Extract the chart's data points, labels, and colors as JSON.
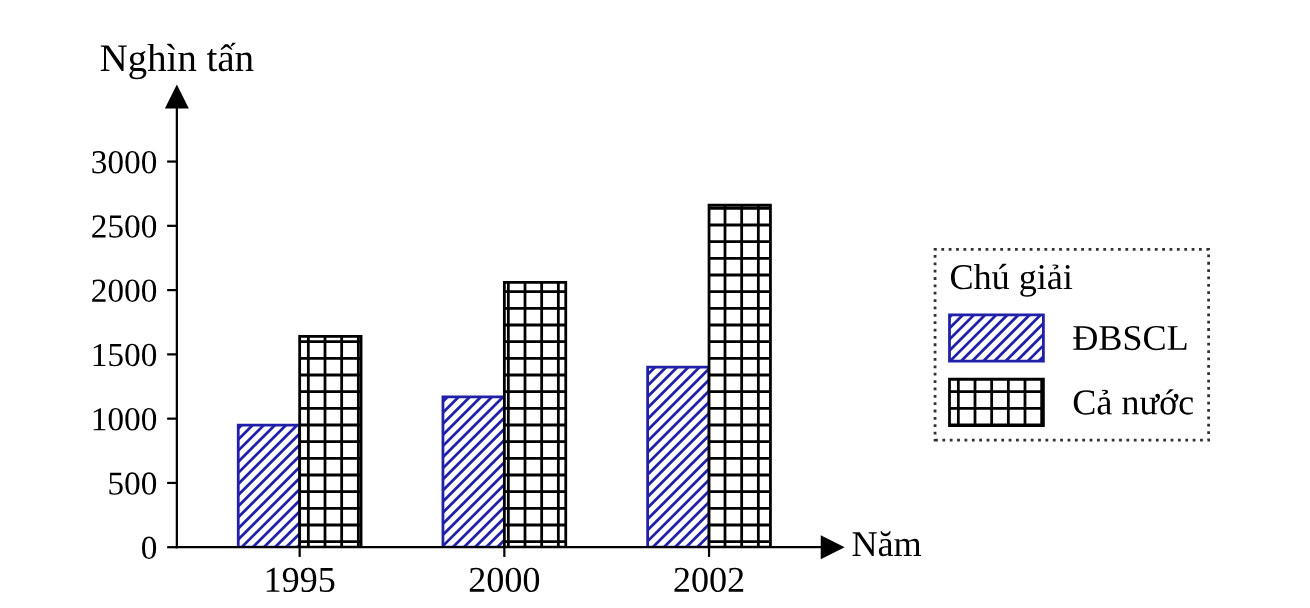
{
  "chart_data": {
    "type": "bar",
    "ylabel": "Nghìn tấn",
    "xlabel": "Năm",
    "legend_title": "Chú giải",
    "categories": [
      "1995",
      "2000",
      "2002"
    ],
    "series": [
      {
        "name": "ĐBSCL",
        "color": "#2020a8",
        "values": [
          950,
          1170,
          1400
        ]
      },
      {
        "name": "Cả nước",
        "color": "#000000",
        "values": [
          1640,
          2060,
          2660
        ]
      }
    ],
    "ylim": [
      0,
      3500
    ],
    "yticks": [
      0,
      500,
      1000,
      1500,
      2000,
      2500,
      3000
    ],
    "legend": "right",
    "grid": false
  }
}
